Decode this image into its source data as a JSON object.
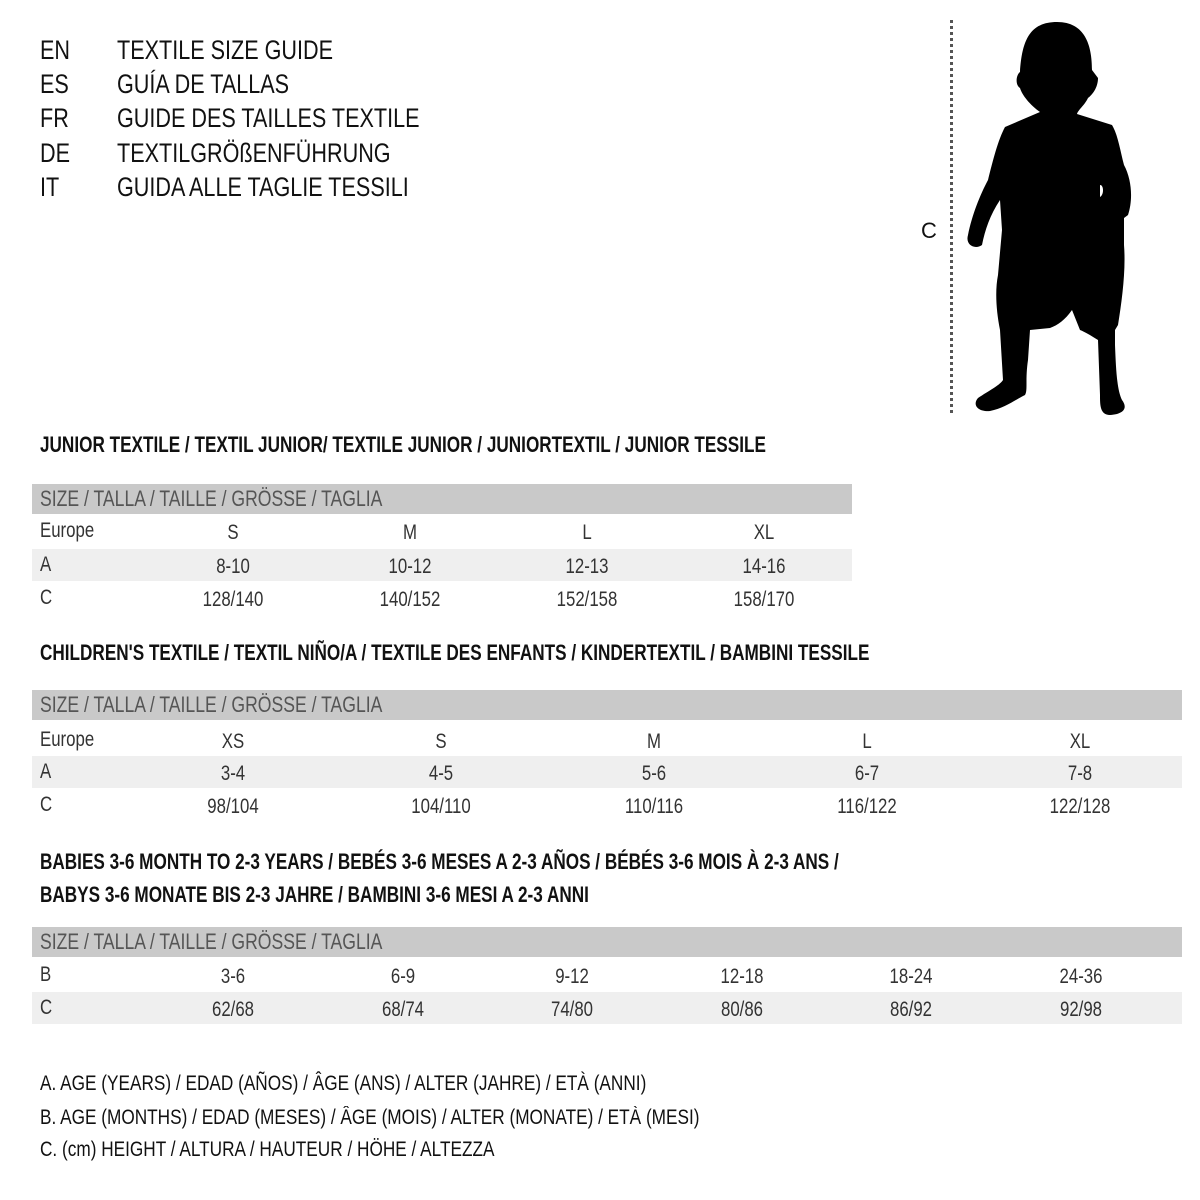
{
  "languages": [
    {
      "code": "EN",
      "title": "TEXTILE SIZE GUIDE"
    },
    {
      "code": "ES",
      "title": "GUÍA DE TALLAS"
    },
    {
      "code": "FR",
      "title": "GUIDE DES TAILLES TEXTILE"
    },
    {
      "code": "DE",
      "title": "TEXTILGRÖßENFÜHRUNG"
    },
    {
      "code": "IT",
      "title": "GUIDA ALLE TAGLIE TESSILI"
    }
  ],
  "figure": {
    "measure_label": "C",
    "icon": "child-silhouette-icon"
  },
  "colors": {
    "header_band": "#c9c9c9",
    "alt_row": "#efefef"
  },
  "sections": [
    {
      "heading": [
        "JUNIOR TEXTILE / TEXTIL JUNIOR/ TEXTILE JUNIOR / JUNIORTEXTIL / JUNIOR TESSILE"
      ],
      "table_header": "SIZE / TALLA / TAILLE / GRÖSSE / TAGLIA",
      "rows": [
        {
          "label": "Europe",
          "values": [
            "S",
            "M",
            "L",
            "XL"
          ]
        },
        {
          "label": "A",
          "values": [
            "8-10",
            "10-12",
            "12-13",
            "14-16"
          ]
        },
        {
          "label": "C",
          "values": [
            "128/140",
            "140/152",
            "152/158",
            "158/170"
          ]
        }
      ]
    },
    {
      "heading": [
        "CHILDREN'S TEXTILE / TEXTIL NIÑO/A / TEXTILE DES ENFANTS / KINDERTEXTIL / BAMBINI TESSILE"
      ],
      "table_header": "SIZE / TALLA / TAILLE / GRÖSSE / TAGLIA",
      "rows": [
        {
          "label": "Europe",
          "values": [
            "XS",
            "S",
            "M",
            "L",
            "XL"
          ]
        },
        {
          "label": "A",
          "values": [
            "3-4",
            "4-5",
            "5-6",
            "6-7",
            "7-8"
          ]
        },
        {
          "label": "C",
          "values": [
            "98/104",
            "104/110",
            "110/116",
            "116/122",
            "122/128"
          ]
        }
      ]
    },
    {
      "heading": [
        "BABIES 3-6 MONTH TO 2-3 YEARS / BEBÉS 3-6 MESES A 2-3 AÑOS / BÉBÉS 3-6 MOIS À 2-3 ANS /",
        "BABYS 3-6 MONATE BIS 2-3 JAHRE / BAMBINI 3-6 MESI A 2-3 ANNI"
      ],
      "table_header": "SIZE / TALLA / TAILLE / GRÖSSE / TAGLIA",
      "rows": [
        {
          "label": "B",
          "values": [
            "3-6",
            "6-9",
            "9-12",
            "12-18",
            "18-24",
            "24-36"
          ]
        },
        {
          "label": "C",
          "values": [
            "62/68",
            "68/74",
            "74/80",
            "80/86",
            "86/92",
            "92/98"
          ]
        }
      ]
    }
  ],
  "footnotes": [
    "A. AGE (YEARS) / EDAD (AÑOS) / ÂGE (ANS) / ALTER (JAHRE) / ETÀ (ANNI)",
    "B. AGE (MONTHS) / EDAD (MESES) / ÂGE (MOIS) / ALTER (MONATE) / ETÀ (MESI)",
    "C. (cm) HEIGHT / ALTURA / HAUTEUR / HÖHE / ALTEZZA"
  ]
}
